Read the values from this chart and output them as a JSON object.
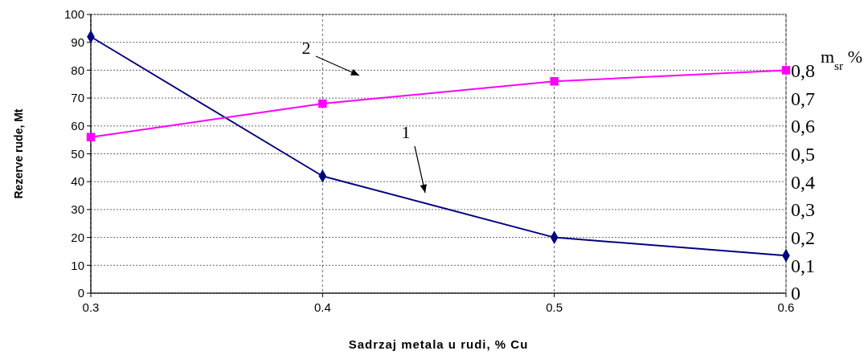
{
  "chart_data": {
    "type": "line",
    "xlabel": "Sadrzaj metala u rudi, % Cu",
    "ylabel": "Rezerve rude, Mt",
    "y2label": "m$_{sr}$ %",
    "x": [
      0.3,
      0.4,
      0.5,
      0.6
    ],
    "xlim": [
      0.3,
      0.6
    ],
    "xticks": [
      0.3,
      0.4,
      0.5,
      0.6
    ],
    "ylim": [
      0,
      100
    ],
    "yticks": [
      0,
      10,
      20,
      30,
      40,
      50,
      60,
      70,
      80,
      90,
      100
    ],
    "y2lim": [
      0,
      1
    ],
    "y2ticks": [
      0,
      {
        "value": 0.1,
        "label": "0,1"
      },
      {
        "value": 0.2,
        "label": "0,2"
      },
      {
        "value": 0.3,
        "label": "0,3"
      },
      {
        "value": 0.4,
        "label": "0,4"
      },
      {
        "value": 0.5,
        "label": "0,5"
      },
      {
        "value": 0.6,
        "label": "0,6"
      },
      {
        "value": 0.7,
        "label": "0,7"
      },
      {
        "value": 0.8,
        "label": "0,8"
      }
    ],
    "grid": true,
    "line_style": "solid",
    "series": [
      {
        "color": "#000080",
        "marker": "diamond",
        "values": [
          92,
          42,
          20,
          13.5
        ]
      },
      {
        "color": "#ff00ff",
        "marker": "square",
        "axis": "y2",
        "values": [
          0.56,
          0.68,
          0.76,
          0.8
        ]
      }
    ],
    "annotations": [
      "1",
      "2"
    ]
  }
}
